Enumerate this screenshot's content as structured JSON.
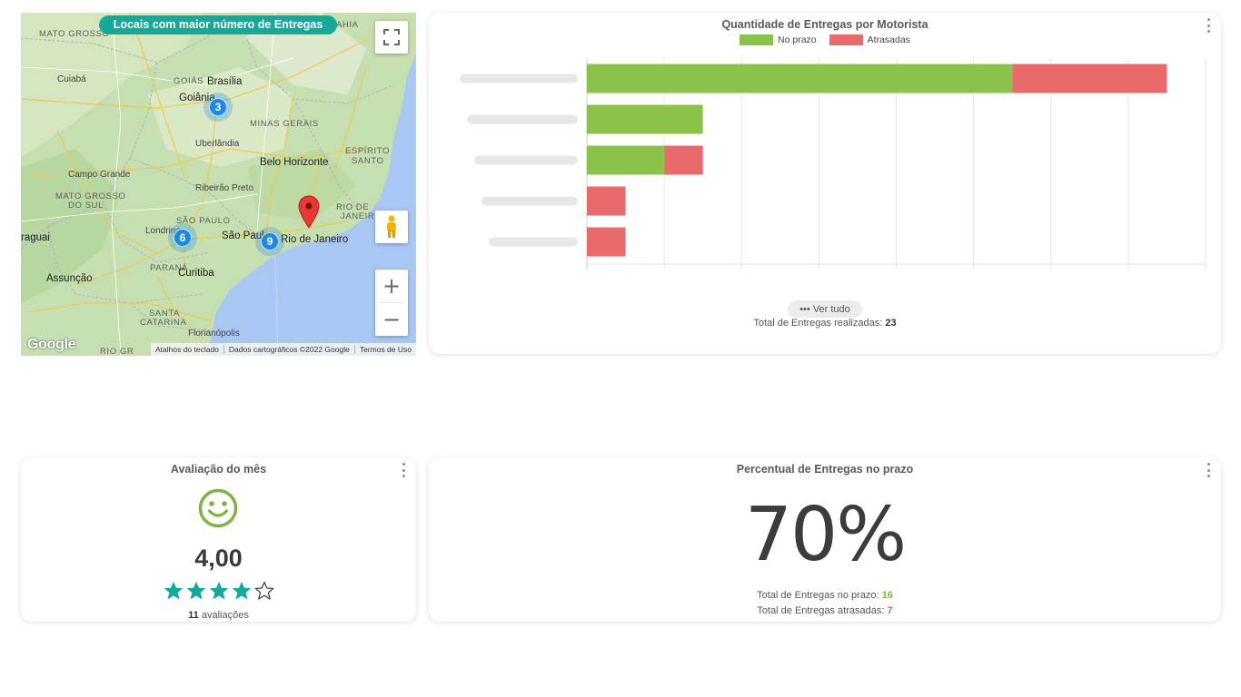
{
  "map": {
    "banner": "Locais com maior número de Entregas",
    "labels": {
      "mato_grosso": "MATO GROSSO",
      "cuiaba": "Cuiabá",
      "goias": "GOIÁS",
      "brasilia": "Brasília",
      "goiania": "Goiânia",
      "minas_gerais": "MINAS GERAIS",
      "uberlandia": "Uberlândia",
      "espirito_santo_1": "ESPÍRITO",
      "espirito_santo_2": "SANTO",
      "belo_horizonte": "Belo Horizonte",
      "campo_grande": "Campo Grande",
      "ribeirao_preto": "Ribeirão Preto",
      "mato_grosso_sul_1": "MATO GROSSO",
      "mato_grosso_sul_2": "DO SUL",
      "rio_state_1": "RIO DE",
      "rio_state_2": "JANEIRO",
      "sao_paulo_state": "SÃO PAULO",
      "londrina": "Londrina",
      "sao_paulo": "São Paulo",
      "rio_de_janeiro": "Rio de Janeiro",
      "paraguai": "raguai",
      "parana": "PARANÁ",
      "curitiba": "Curitiba",
      "assuncao": "Assunção",
      "santa_catarina_1": "SANTA",
      "santa_catarina_2": "CATARINA",
      "florianopolis": "Florianópolis",
      "rio_grande": "RIO GR",
      "bahia": "AHIA"
    },
    "clusters": [
      {
        "count": "3"
      },
      {
        "count": "6"
      },
      {
        "count": "9"
      }
    ],
    "google": "Google",
    "attribution": [
      "Atalhos do teclado",
      "Dados cartográficos ©2022 Google",
      "Termos de Uso"
    ]
  },
  "bar_card": {
    "title": "Quantidade de Entregas por Motorista",
    "ver_tudo": "••• Ver tudo",
    "total_label": "Total de Entregas realizadas: ",
    "total_value": "23"
  },
  "chart_data": {
    "type": "bar",
    "orientation": "horizontal",
    "stacked": true,
    "title": "Quantidade de Entregas por Motorista",
    "categories": [
      "",
      "",
      "",
      "",
      ""
    ],
    "series": [
      {
        "name": "No prazo",
        "color": "#8bc34a",
        "values": [
          11,
          3,
          2,
          0,
          0
        ]
      },
      {
        "name": "Atrasadas",
        "color": "#e96a6a",
        "values": [
          4,
          0,
          1,
          1,
          1
        ]
      }
    ],
    "xlim": [
      0,
      16
    ],
    "grid": true,
    "legend": "top-center"
  },
  "rating_card": {
    "title": "Avaliação do mês",
    "score": "4,00",
    "stars_filled": 4,
    "stars_total": 5,
    "count": "11",
    "count_suffix": " avaliações",
    "accent": "#7cb342",
    "star_color": "#16a99a"
  },
  "pct_card": {
    "title": "Percentual de Entregas no prazo",
    "percent": "70%",
    "on_time_label": "Total de Entregas no prazo: ",
    "on_time_value": "16",
    "late_label": "Total de Entregas atrasadas: ",
    "late_value": "7"
  }
}
